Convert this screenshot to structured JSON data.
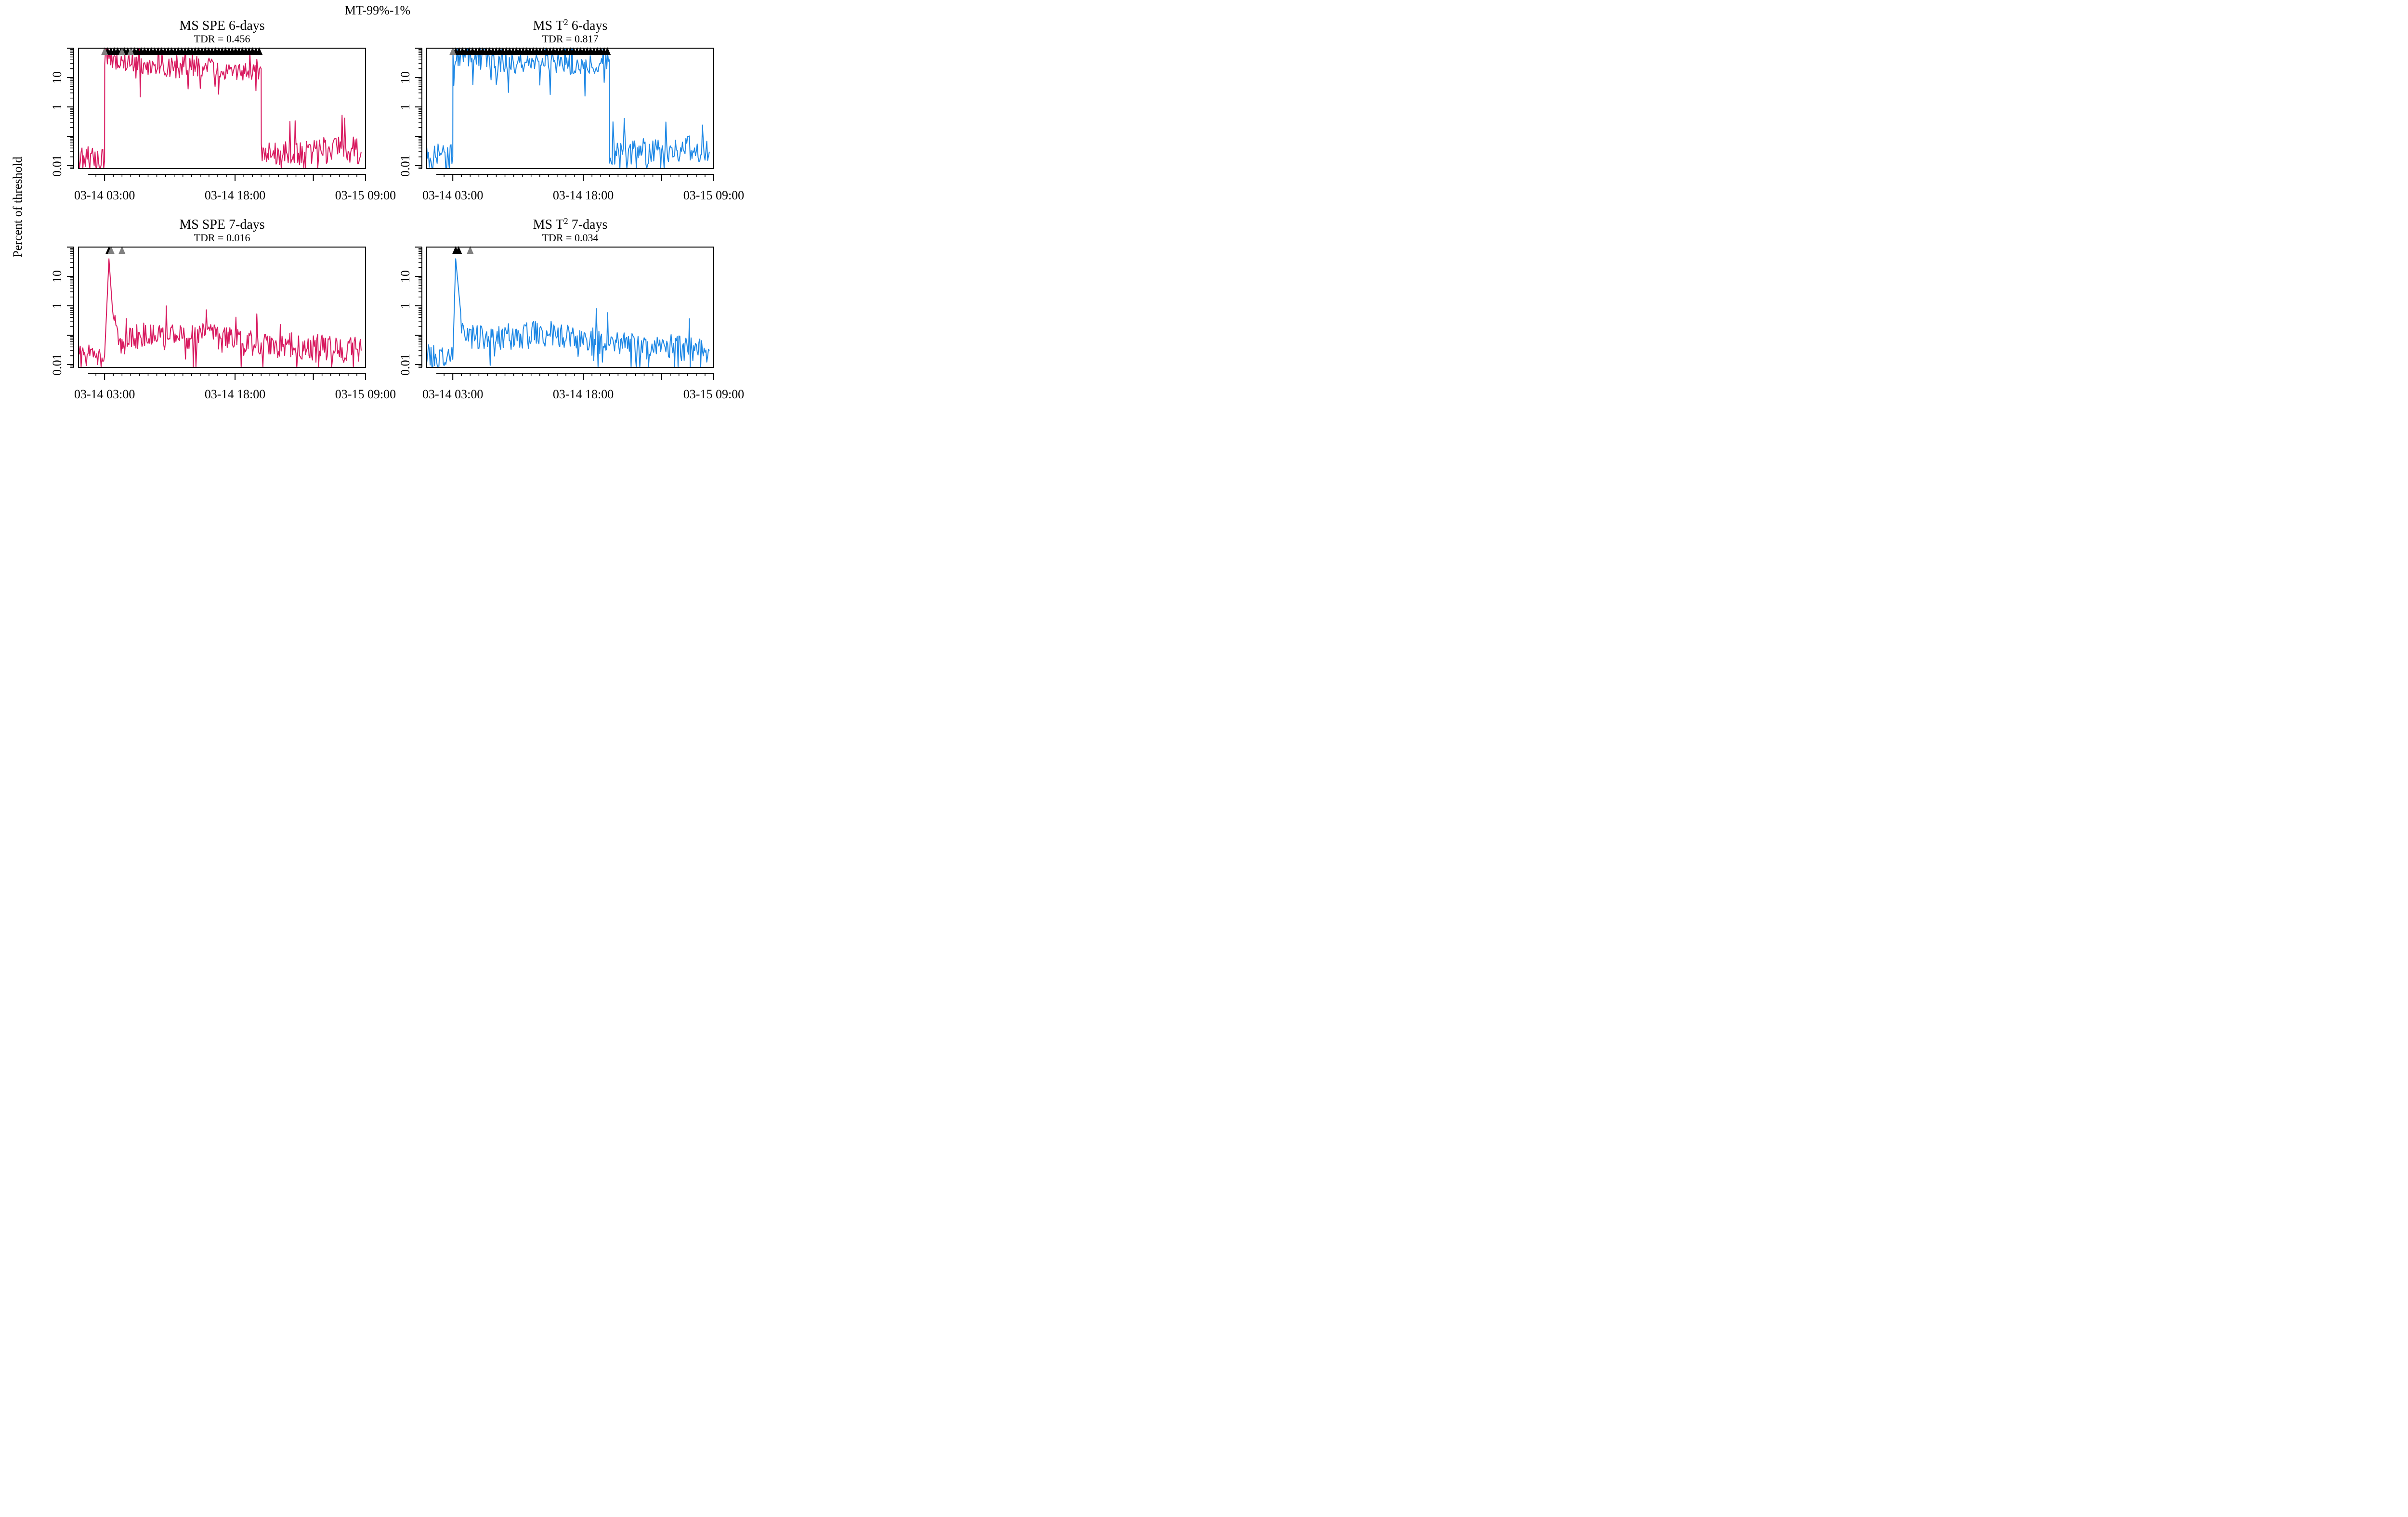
{
  "figure": {
    "suptitle": "MT-99%-1%",
    "ylabel": "Percent of threshold"
  },
  "chart_data": [
    {
      "type": "line",
      "title": "MS SPE 6-days",
      "title_parts": [
        "MS SPE 6-days"
      ],
      "subtitle": "TDR = 0.456",
      "color": "#d81b60",
      "y_scale": "log",
      "ylim": [
        0.008,
        100
      ],
      "y_ticks": [
        0.01,
        1,
        10
      ],
      "y_tick_labels": [
        "0.01",
        "1",
        "10"
      ],
      "x_domain": [
        "03-14 00:00",
        "03-15 09:00"
      ],
      "x_tick_labels": [
        "03-14 03:00",
        "03-14 18:00",
        "03-15 09:00"
      ],
      "series": [
        {
          "x": [
            "03-14 00:00",
            "03-14 03:00",
            "03-14 03:01",
            "03-14 07:00",
            "03-14 10:00",
            "03-14 14:00",
            "03-14 18:00",
            "03-14 21:00",
            "03-14 21:01",
            "03-15 03:00",
            "03-15 07:00",
            "03-15 08:30"
          ],
          "y": [
            0.02,
            0.015,
            50,
            30,
            20,
            25,
            15,
            20,
            0.02,
            0.03,
            0.04,
            0.03
          ]
        }
      ],
      "alarms": [
        {
          "x": "03-14 03:00",
          "type": "grey"
        },
        {
          "x": "03-14 05:00",
          "type": "grey"
        },
        {
          "x": "03-14 06:00",
          "type": "grey"
        }
      ],
      "alarm_band": [
        "03-14 03:20",
        "03-14 21:00"
      ]
    },
    {
      "type": "line",
      "title": "MS T2 6-days",
      "title_parts": [
        "MS T",
        "2",
        " 6-days"
      ],
      "subtitle": "TDR = 0.817",
      "color": "#1e88e5",
      "y_scale": "log",
      "ylim": [
        0.008,
        100
      ],
      "y_ticks": [
        0.01,
        1,
        10
      ],
      "y_tick_labels": [
        "0.01",
        "1",
        "10"
      ],
      "x_domain": [
        "03-14 00:00",
        "03-15 09:00"
      ],
      "x_tick_labels": [
        "03-14 03:00",
        "03-14 18:00",
        "03-15 09:00"
      ],
      "series": [
        {
          "x": [
            "03-14 00:00",
            "03-14 03:00",
            "03-14 03:01",
            "03-14 07:00",
            "03-14 10:00",
            "03-14 14:00",
            "03-14 18:00",
            "03-14 21:00",
            "03-14 21:01",
            "03-15 03:00",
            "03-15 07:00",
            "03-15 08:30"
          ],
          "y": [
            0.02,
            0.02,
            50,
            40,
            30,
            35,
            25,
            40,
            0.03,
            0.03,
            0.04,
            0.03
          ]
        }
      ],
      "alarms": [
        {
          "x": "03-14 03:00",
          "type": "grey"
        }
      ],
      "alarm_band": [
        "03-14 03:20",
        "03-14 21:00"
      ]
    },
    {
      "type": "line",
      "title": "MS SPE 7-days",
      "title_parts": [
        "MS SPE 7-days"
      ],
      "subtitle": "TDR = 0.016",
      "color": "#d81b60",
      "y_scale": "log",
      "ylim": [
        0.008,
        100
      ],
      "y_ticks": [
        0.01,
        1,
        10
      ],
      "y_tick_labels": [
        "0.01",
        "1",
        "10"
      ],
      "x_domain": [
        "03-14 00:00",
        "03-15 09:00"
      ],
      "x_tick_labels": [
        "03-14 03:00",
        "03-14 18:00",
        "03-15 09:00"
      ],
      "series": [
        {
          "x": [
            "03-14 00:00",
            "03-14 03:00",
            "03-14 03:30",
            "03-14 04:00",
            "03-14 05:00",
            "03-14 07:00",
            "03-14 10:00",
            "03-14 14:00",
            "03-14 18:00",
            "03-14 21:00",
            "03-15 03:00",
            "03-15 08:30"
          ],
          "y": [
            0.02,
            0.02,
            40,
            0.3,
            0.05,
            0.1,
            0.08,
            0.1,
            0.06,
            0.05,
            0.04,
            0.03
          ]
        }
      ],
      "alarms": [
        {
          "x": "03-14 03:30",
          "type": "black"
        },
        {
          "x": "03-14 03:45",
          "type": "grey"
        },
        {
          "x": "03-14 05:00",
          "type": "grey"
        }
      ]
    },
    {
      "type": "line",
      "title": "MS T2 7-days",
      "title_parts": [
        "MS T",
        "2",
        " 7-days"
      ],
      "subtitle": "TDR = 0.034",
      "color": "#1e88e5",
      "y_scale": "log",
      "ylim": [
        0.008,
        100
      ],
      "y_ticks": [
        0.01,
        1,
        10
      ],
      "y_tick_labels": [
        "0.01",
        "1",
        "10"
      ],
      "x_domain": [
        "03-14 00:00",
        "03-15 09:00"
      ],
      "x_tick_labels": [
        "03-14 03:00",
        "03-14 18:00",
        "03-15 09:00"
      ],
      "series": [
        {
          "x": [
            "03-14 00:00",
            "03-14 03:00",
            "03-14 03:20",
            "03-14 04:00",
            "03-14 05:00",
            "03-14 07:00",
            "03-14 10:00",
            "03-14 14:00",
            "03-14 18:00",
            "03-14 21:00",
            "03-15 03:00",
            "03-15 08:30"
          ],
          "y": [
            0.02,
            0.015,
            40,
            0.3,
            0.08,
            0.1,
            0.09,
            0.12,
            0.08,
            0.05,
            0.04,
            0.03
          ]
        }
      ],
      "alarms": [
        {
          "x": "03-14 03:20",
          "type": "black"
        },
        {
          "x": "03-14 03:40",
          "type": "black"
        },
        {
          "x": "03-14 05:00",
          "type": "grey"
        }
      ]
    }
  ]
}
